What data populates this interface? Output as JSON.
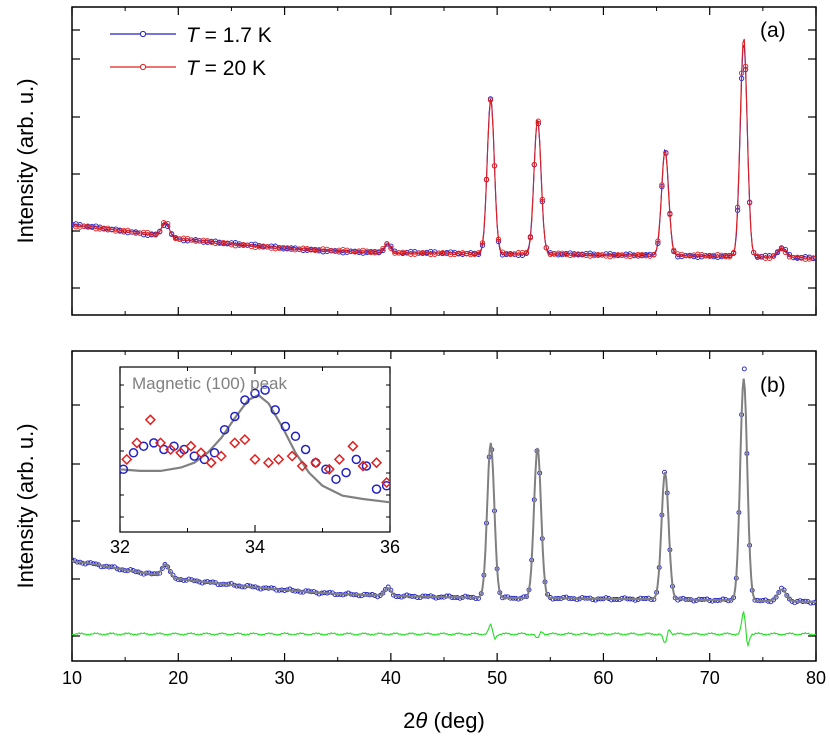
{
  "figure": {
    "ylabel_top": "Intensity (arb. u.)",
    "ylabel_bottom": "Intensity (arb. u.)",
    "xlabel_prefix": "2",
    "xlabel_symbol": "θ",
    "xlabel_suffix": " (deg)",
    "panel_a_label": "(a)",
    "panel_b_label": "(b)",
    "legend": [
      {
        "symbol": "T",
        "text": " = 1.7 K",
        "color": "#2020c8"
      },
      {
        "symbol": "T",
        "text": " = 20 K",
        "color": "#e02020"
      }
    ],
    "inset_title": "Magnetic (100) peak",
    "colors": {
      "blue": "#2020c8",
      "red": "#e02020",
      "fit": "#808080",
      "diff": "#22dd22"
    }
  },
  "chart_data": [
    {
      "panel": "a",
      "type": "line",
      "xlim": [
        10,
        80
      ],
      "xticks": [
        10,
        20,
        30,
        40,
        50,
        60,
        70,
        80
      ],
      "yticks_labeled": false,
      "series": [
        {
          "name": "T = 1.7 K",
          "color": "#2020c8",
          "marker": "open-circle"
        },
        {
          "name": "T = 20 K",
          "color": "#e02020",
          "marker": "open-circle"
        }
      ],
      "baseline": [
        [
          10,
          75
        ],
        [
          12,
          73
        ],
        [
          15,
          69
        ],
        [
          18,
          65
        ],
        [
          20,
          61
        ],
        [
          25,
          56
        ],
        [
          30,
          52
        ],
        [
          35,
          49
        ],
        [
          40,
          47
        ],
        [
          45,
          47
        ],
        [
          50,
          46
        ],
        [
          55,
          46
        ],
        [
          60,
          45
        ],
        [
          65,
          45
        ],
        [
          70,
          44
        ],
        [
          75,
          43
        ],
        [
          80,
          42
        ]
      ],
      "peaks": [
        {
          "x": 18.8,
          "height": 14,
          "width": 0.35
        },
        {
          "x": 39.7,
          "height": 9,
          "width": 0.3
        },
        {
          "x": 49.4,
          "height": 155,
          "width": 0.33
        },
        {
          "x": 53.8,
          "height": 135,
          "width": 0.33
        },
        {
          "x": 65.8,
          "height": 105,
          "width": 0.33
        },
        {
          "x": 73.2,
          "height": 220,
          "width": 0.33
        },
        {
          "x": 76.8,
          "height": 9,
          "width": 0.4
        }
      ]
    },
    {
      "panel": "b",
      "type": "line",
      "xlim": [
        10,
        80
      ],
      "xticks": [
        10,
        20,
        30,
        40,
        50,
        60,
        70,
        80
      ],
      "yticks_labeled": false,
      "series": [
        {
          "color": "#2020c8",
          "marker": "open-circle"
        },
        {
          "color": "#808080",
          "marker": "none"
        },
        {
          "color": "#22dd22",
          "marker": "none"
        }
      ],
      "baseline": [
        [
          10,
          55
        ],
        [
          12,
          52
        ],
        [
          15,
          46
        ],
        [
          18,
          41
        ],
        [
          20,
          37
        ],
        [
          25,
          31
        ],
        [
          30,
          26
        ],
        [
          35,
          22
        ],
        [
          40,
          20
        ],
        [
          45,
          19
        ],
        [
          50,
          18
        ],
        [
          55,
          18
        ],
        [
          60,
          17
        ],
        [
          65,
          17
        ],
        [
          70,
          16
        ],
        [
          75,
          15
        ],
        [
          80,
          14
        ]
      ],
      "peaks": [
        {
          "x": 18.8,
          "height": 12,
          "width": 0.35
        },
        {
          "x": 39.7,
          "height": 8,
          "width": 0.3
        },
        {
          "x": 49.4,
          "height": 155,
          "width": 0.33
        },
        {
          "x": 53.8,
          "height": 150,
          "width": 0.33
        },
        {
          "x": 65.8,
          "height": 127,
          "width": 0.33
        },
        {
          "x": 73.2,
          "height": 222,
          "width": 0.33
        },
        {
          "x": 76.8,
          "height": 12,
          "width": 0.4
        }
      ],
      "difference_spikes": [
        {
          "x": 49.4,
          "amplitude": 9
        },
        {
          "x": 53.8,
          "amplitude": -5
        },
        {
          "x": 65.8,
          "amplitude": -10
        },
        {
          "x": 73.2,
          "amplitude": 22
        }
      ]
    },
    {
      "panel": "b-inset",
      "type": "scatter",
      "title": "Magnetic (100) peak",
      "xlim": [
        32,
        36
      ],
      "xticks": [
        32,
        34,
        36
      ],
      "ylim": [
        0,
        100
      ],
      "series": [
        {
          "color": "#2020c8",
          "marker": "open-circle",
          "x": [
            32.05,
            32.2,
            32.35,
            32.5,
            32.65,
            32.8,
            32.95,
            33.1,
            33.25,
            33.4,
            33.55,
            33.7,
            33.85,
            34.0,
            34.15,
            34.3,
            34.45,
            34.6,
            34.75,
            34.9,
            35.05,
            35.2,
            35.35,
            35.5,
            35.65,
            35.8,
            35.95
          ],
          "y": [
            38,
            48,
            52,
            54,
            50,
            52,
            50,
            46,
            44,
            48,
            62,
            70,
            80,
            84,
            86,
            74,
            64,
            58,
            50,
            42,
            38,
            32,
            36,
            44,
            40,
            26,
            28
          ]
        },
        {
          "color": "#e02020",
          "marker": "open-diamond",
          "x": [
            32.1,
            32.25,
            32.45,
            32.6,
            32.75,
            32.9,
            33.05,
            33.2,
            33.35,
            33.5,
            33.7,
            33.85,
            34.0,
            34.2,
            34.35,
            34.55,
            34.7,
            34.9,
            35.1,
            35.25,
            35.45,
            35.6,
            35.8,
            35.95
          ],
          "y": [
            44,
            54,
            68,
            54,
            50,
            48,
            52,
            48,
            42,
            46,
            54,
            56,
            44,
            42,
            44,
            46,
            40,
            42,
            38,
            44,
            52,
            40,
            42,
            30
          ]
        },
        {
          "color": "#808080",
          "marker": "none",
          "x": [
            32.0,
            32.3,
            32.6,
            32.9,
            33.1,
            33.3,
            33.5,
            33.7,
            33.9,
            34.05,
            34.2,
            34.4,
            34.6,
            34.8,
            35.0,
            35.3,
            35.6,
            36.0
          ],
          "y": [
            38,
            37,
            37,
            39,
            42,
            48,
            57,
            69,
            80,
            83,
            78,
            64,
            48,
            36,
            28,
            22,
            20,
            18
          ]
        }
      ]
    }
  ]
}
